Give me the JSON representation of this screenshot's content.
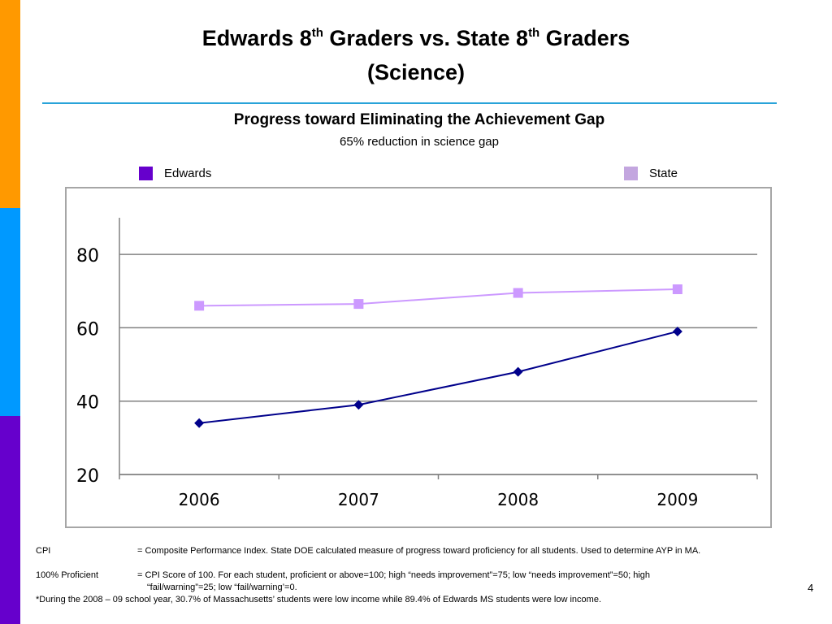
{
  "slide": {
    "title_line1_a": "Edwards 8",
    "title_sup_a": "th",
    "title_line1_b": " Graders vs. State 8",
    "title_sup_b": "th",
    "title_line1_c": " Graders",
    "title_line2": "(Science)",
    "subtitle": "Progress toward Eliminating the Achievement Gap",
    "note": "65% reduction in science gap",
    "page_number": "4",
    "colors": {
      "bar_orange": "#ff9900",
      "bar_blue": "#0099ff",
      "bar_purple": "#6600cc",
      "title_rule": "#29a3d9"
    }
  },
  "chart_data": {
    "type": "line",
    "categories": [
      "2006",
      "2007",
      "2008",
      "2009"
    ],
    "series": [
      {
        "name": "Edwards",
        "values": [
          34,
          39,
          48,
          59
        ],
        "color": "#00008b",
        "marker": "diamond",
        "legend_color": "#6600cc"
      },
      {
        "name": "State",
        "values": [
          66,
          66.5,
          69.5,
          70.5
        ],
        "color": "#cc99ff",
        "marker": "square",
        "legend_color": "#c3a6df"
      }
    ],
    "ylim": [
      20,
      90
    ],
    "yticks": [
      "20",
      "40",
      "60",
      "80"
    ],
    "ytick_values": [
      20,
      40,
      60,
      80
    ],
    "grid": true,
    "legend_position": "top"
  },
  "footnotes": {
    "cpi_term": "CPI",
    "cpi_def": "= Composite Performance Index. State DOE calculated measure of progress toward proficiency for all students. Used to determine AYP in MA.",
    "prof_term": "100% Proficient",
    "prof_def": "= CPI Score of 100. For each student, proficient or above=100; high “needs improvement”=75; low “needs improvement”=50; high",
    "prof_def_cont": "“fail/warning”=25; low “fail/warning’=0.",
    "income_note": "*During the 2008 – 09 school year, 30.7% of Massachusetts’ students were low income while 89.4% of Edwards MS students were low income."
  }
}
